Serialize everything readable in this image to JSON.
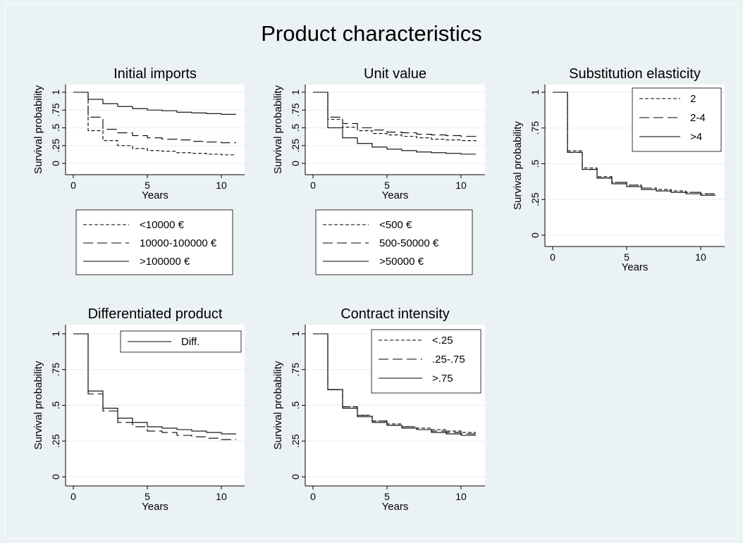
{
  "figure": {
    "title": "Product characteristics",
    "background": "#eaf2f3",
    "plot_background": "#ffffff",
    "title_color": "#1a2e5a"
  },
  "chart_data": [
    {
      "type": "line",
      "title": "Initial imports",
      "xlabel": "Years",
      "ylabel": "Survival probability",
      "xlim": [
        0,
        11
      ],
      "ylim": [
        0,
        1
      ],
      "xticks": [
        0,
        5,
        10
      ],
      "yticks": [
        0,
        0.25,
        0.5,
        0.75,
        1
      ],
      "ytick_labels": [
        "0",
        ".25",
        ".5",
        ".75",
        "1"
      ],
      "legend_position": "below",
      "series": [
        {
          "name": "<10000 €",
          "dash": "short",
          "x": [
            0,
            1,
            2,
            3,
            4,
            5,
            6,
            7,
            8,
            9,
            10,
            11
          ],
          "y": [
            1,
            0.46,
            0.32,
            0.25,
            0.21,
            0.18,
            0.17,
            0.15,
            0.14,
            0.13,
            0.12,
            0.12
          ]
        },
        {
          "name": "10000-100000 €",
          "dash": "long",
          "x": [
            0,
            1,
            2,
            3,
            4,
            5,
            6,
            7,
            8,
            9,
            10,
            11
          ],
          "y": [
            1,
            0.65,
            0.48,
            0.43,
            0.39,
            0.36,
            0.34,
            0.33,
            0.31,
            0.3,
            0.29,
            0.29
          ]
        },
        {
          "name": ">100000 €",
          "dash": "solid",
          "x": [
            0,
            1,
            2,
            3,
            4,
            5,
            6,
            7,
            8,
            9,
            10,
            11
          ],
          "y": [
            1,
            0.9,
            0.84,
            0.8,
            0.77,
            0.75,
            0.74,
            0.72,
            0.71,
            0.7,
            0.69,
            0.69
          ]
        }
      ]
    },
    {
      "type": "line",
      "title": "Unit value",
      "xlabel": "Years",
      "ylabel": "Survival probability",
      "xlim": [
        0,
        11
      ],
      "ylim": [
        0,
        1
      ],
      "xticks": [
        0,
        5,
        10
      ],
      "yticks": [
        0,
        0.25,
        0.5,
        0.75,
        1
      ],
      "ytick_labels": [
        "0",
        ".25",
        ".5",
        ".75",
        "1"
      ],
      "legend_position": "below",
      "series": [
        {
          "name": "<500 €",
          "dash": "short",
          "x": [
            0,
            1,
            2,
            3,
            4,
            5,
            6,
            7,
            8,
            9,
            10,
            11
          ],
          "y": [
            1,
            0.62,
            0.51,
            0.46,
            0.42,
            0.4,
            0.38,
            0.36,
            0.34,
            0.33,
            0.32,
            0.31
          ]
        },
        {
          "name": "500-50000 €",
          "dash": "long",
          "x": [
            0,
            1,
            2,
            3,
            4,
            5,
            6,
            7,
            8,
            9,
            10,
            11
          ],
          "y": [
            1,
            0.65,
            0.56,
            0.5,
            0.47,
            0.44,
            0.43,
            0.41,
            0.4,
            0.39,
            0.38,
            0.37
          ]
        },
        {
          "name": ">50000 €",
          "dash": "solid",
          "x": [
            0,
            1,
            2,
            3,
            4,
            5,
            6,
            7,
            8,
            9,
            10,
            11
          ],
          "y": [
            1,
            0.5,
            0.36,
            0.28,
            0.23,
            0.2,
            0.18,
            0.16,
            0.15,
            0.14,
            0.13,
            0.13
          ]
        }
      ]
    },
    {
      "type": "line",
      "title": "Substitution elasticity",
      "xlabel": "Years",
      "ylabel": "Survival probability",
      "xlim": [
        0,
        11
      ],
      "ylim": [
        0,
        1
      ],
      "xticks": [
        0,
        5,
        10
      ],
      "yticks": [
        0,
        0.25,
        0.5,
        0.75,
        1
      ],
      "ytick_labels": [
        "0",
        ".25",
        ".5",
        ".75",
        "1"
      ],
      "legend_position": "top-right",
      "series": [
        {
          "name": "2",
          "dash": "short",
          "x": [
            0,
            1,
            2,
            3,
            4,
            5,
            6,
            7,
            8,
            9,
            10,
            11
          ],
          "y": [
            1,
            0.59,
            0.47,
            0.41,
            0.37,
            0.35,
            0.33,
            0.32,
            0.31,
            0.3,
            0.29,
            0.29
          ]
        },
        {
          "name": "2-4",
          "dash": "long",
          "x": [
            0,
            1,
            2,
            3,
            4,
            5,
            6,
            7,
            8,
            9,
            10,
            11
          ],
          "y": [
            1,
            0.58,
            0.46,
            0.4,
            0.37,
            0.35,
            0.33,
            0.31,
            0.3,
            0.3,
            0.29,
            0.29
          ]
        },
        {
          "name": ">4",
          "dash": "solid",
          "x": [
            0,
            1,
            2,
            3,
            4,
            5,
            6,
            7,
            8,
            9,
            10,
            11
          ],
          "y": [
            1,
            0.58,
            0.46,
            0.4,
            0.36,
            0.34,
            0.32,
            0.31,
            0.3,
            0.29,
            0.28,
            0.28
          ]
        }
      ]
    },
    {
      "type": "line",
      "title": "Differentiated product",
      "xlabel": "Years",
      "ylabel": "Survival probability",
      "xlim": [
        0,
        11
      ],
      "ylim": [
        0,
        1
      ],
      "xticks": [
        0,
        5,
        10
      ],
      "yticks": [
        0,
        0.25,
        0.5,
        0.75,
        1
      ],
      "ytick_labels": [
        "0",
        ".25",
        ".5",
        ".75",
        "1"
      ],
      "legend_position": "top-right",
      "series": [
        {
          "name": "",
          "dash": "long",
          "x": [
            0,
            1,
            2,
            3,
            4,
            5,
            6,
            7,
            8,
            9,
            10,
            11
          ],
          "y": [
            1,
            0.58,
            0.46,
            0.38,
            0.35,
            0.32,
            0.31,
            0.29,
            0.28,
            0.27,
            0.26,
            0.26
          ]
        },
        {
          "name": "Diff.",
          "dash": "solid",
          "x": [
            0,
            1,
            2,
            3,
            4,
            5,
            6,
            7,
            8,
            9,
            10,
            11
          ],
          "y": [
            1,
            0.6,
            0.48,
            0.41,
            0.38,
            0.35,
            0.34,
            0.33,
            0.32,
            0.31,
            0.3,
            0.3
          ]
        }
      ]
    },
    {
      "type": "line",
      "title": "Contract intensity",
      "xlabel": "Years",
      "ylabel": "Survival probability",
      "xlim": [
        0,
        11
      ],
      "ylim": [
        0,
        1
      ],
      "xticks": [
        0,
        5,
        10
      ],
      "yticks": [
        0,
        0.25,
        0.5,
        0.75,
        1
      ],
      "ytick_labels": [
        "0",
        ".25",
        ".5",
        ".75",
        "1"
      ],
      "legend_position": "top-right",
      "series": [
        {
          "name": "<.25",
          "dash": "short",
          "x": [
            0,
            1,
            2,
            3,
            4,
            5,
            6,
            7,
            8,
            9,
            10,
            11
          ],
          "y": [
            1,
            0.61,
            0.49,
            0.43,
            0.39,
            0.37,
            0.35,
            0.34,
            0.33,
            0.32,
            0.31,
            0.31
          ]
        },
        {
          "name": ".25-.75",
          "dash": "long",
          "x": [
            0,
            1,
            2,
            3,
            4,
            5,
            6,
            7,
            8,
            9,
            10,
            11
          ],
          "y": [
            1,
            0.61,
            0.49,
            0.43,
            0.39,
            0.36,
            0.35,
            0.33,
            0.32,
            0.31,
            0.3,
            0.3
          ]
        },
        {
          "name": ">.75",
          "dash": "solid",
          "x": [
            0,
            1,
            2,
            3,
            4,
            5,
            6,
            7,
            8,
            9,
            10,
            11
          ],
          "y": [
            1,
            0.61,
            0.48,
            0.42,
            0.38,
            0.36,
            0.34,
            0.33,
            0.31,
            0.3,
            0.29,
            0.29
          ]
        }
      ]
    }
  ]
}
